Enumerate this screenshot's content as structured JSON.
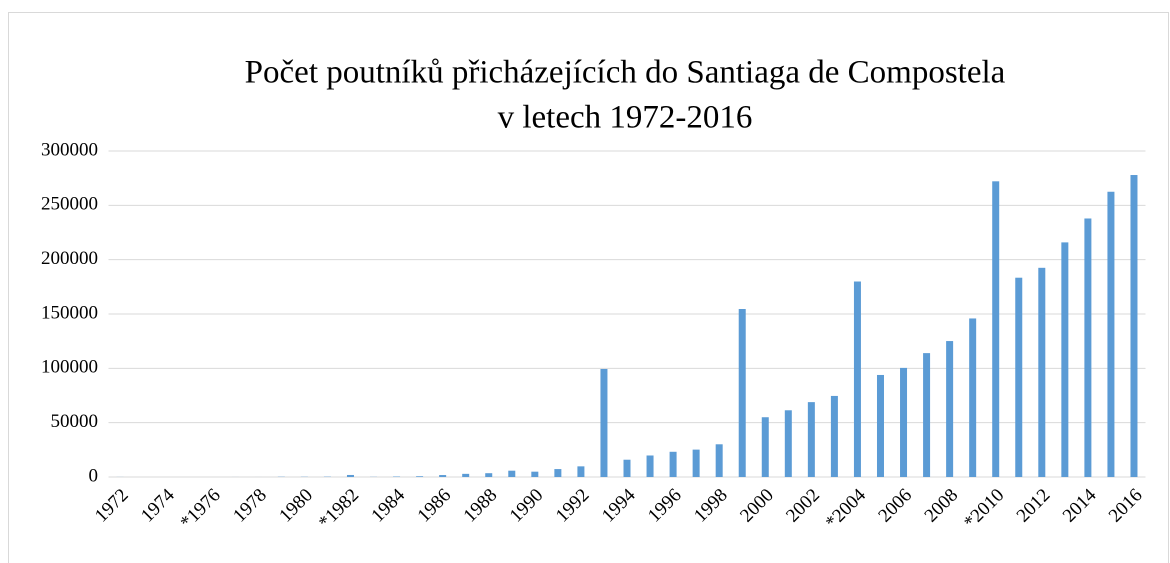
{
  "chart_data": {
    "type": "bar",
    "title": [
      "Počet poutníků přicházejících do Santiaga de Compostela",
      "v letech 1972-2016"
    ],
    "categories": [
      "1972",
      null,
      "1974",
      null,
      "*1976",
      null,
      "1978",
      null,
      "1980",
      null,
      "*1982",
      null,
      "1984",
      null,
      "1986",
      null,
      "1988",
      null,
      "1990",
      null,
      "1992",
      null,
      "1994",
      null,
      "1996",
      null,
      "1998",
      null,
      "2000",
      null,
      "2002",
      null,
      "*2004",
      null,
      "2006",
      null,
      "2008",
      null,
      "*2010",
      null,
      "2012",
      null,
      "2014",
      null,
      "2016"
    ],
    "values": [
      67,
      0,
      0,
      0,
      0,
      31,
      13,
      231,
      209,
      299,
      1868,
      146,
      423,
      690,
      1801,
      2900,
      3500,
      5800,
      4900,
      7300,
      9800,
      99400,
      15900,
      19800,
      23200,
      25200,
      30100,
      154600,
      55000,
      61400,
      68900,
      74600,
      179900,
      93900,
      100400,
      114000,
      125100,
      145900,
      272100,
      183400,
      192500,
      215900,
      237900,
      262500,
      277900
    ],
    "color": "#5b9bd5",
    "ylim": [
      0,
      300000
    ],
    "yticks": [
      0,
      50000,
      100000,
      150000,
      200000,
      250000,
      300000
    ],
    "grid": true
  }
}
